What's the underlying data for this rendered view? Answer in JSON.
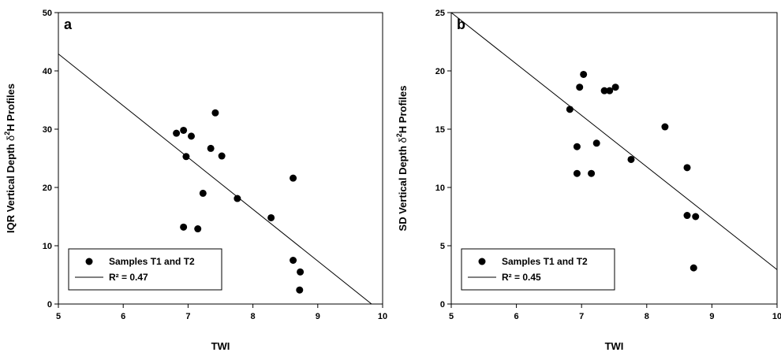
{
  "chart_data": [
    {
      "type": "scatter",
      "panel_label": "a",
      "xlabel": "TWI",
      "ylabel_parts": [
        "IQR Vertical Depth ",
        "δ",
        "2",
        "H Profiles"
      ],
      "xlim": [
        5,
        10
      ],
      "ylim": [
        0,
        50
      ],
      "xticks": [
        "5",
        "6",
        "7",
        "8",
        "9",
        "10"
      ],
      "yticks": [
        "0",
        "10",
        "20",
        "30",
        "40",
        "50"
      ],
      "legend": {
        "position": "bottom-left",
        "marker_label": "Samples T1 and T2",
        "line_label": "R² = 0.47"
      },
      "series": [
        {
          "name": "Samples T1 and T2",
          "points": [
            [
              6.82,
              29.3
            ],
            [
              6.93,
              29.8
            ],
            [
              6.97,
              25.3
            ],
            [
              7.05,
              28.8
            ],
            [
              7.42,
              32.8
            ],
            [
              7.35,
              26.7
            ],
            [
              7.52,
              25.4
            ],
            [
              7.23,
              19.0
            ],
            [
              7.76,
              18.1
            ],
            [
              8.28,
              14.8
            ],
            [
              8.62,
              21.6
            ],
            [
              6.93,
              13.2
            ],
            [
              7.15,
              12.9
            ],
            [
              8.62,
              7.5
            ],
            [
              8.73,
              5.5
            ],
            [
              8.72,
              2.4
            ]
          ]
        }
      ],
      "fit_line": {
        "x": [
          5,
          9.83
        ],
        "y": [
          42.9,
          0
        ]
      }
    },
    {
      "type": "scatter",
      "panel_label": "b",
      "xlabel": "TWI",
      "ylabel_parts": [
        "SD  Vertical Depth ",
        "δ",
        "2",
        "H Profiles"
      ],
      "xlim": [
        5,
        10
      ],
      "ylim": [
        0,
        25
      ],
      "xticks": [
        "5",
        "6",
        "7",
        "8",
        "9",
        "10"
      ],
      "yticks": [
        "0",
        "5",
        "10",
        "15",
        "20",
        "25"
      ],
      "legend": {
        "position": "bottom-left",
        "marker_label": "Samples T1 and T2",
        "line_label": "R² = 0.45"
      },
      "series": [
        {
          "name": "Samples T1 and T2",
          "points": [
            [
              7.03,
              19.7
            ],
            [
              6.97,
              18.6
            ],
            [
              7.35,
              18.3
            ],
            [
              7.43,
              18.3
            ],
            [
              7.52,
              18.6
            ],
            [
              6.82,
              16.7
            ],
            [
              8.28,
              15.2
            ],
            [
              6.93,
              13.5
            ],
            [
              7.23,
              13.8
            ],
            [
              7.76,
              12.4
            ],
            [
              6.93,
              11.2
            ],
            [
              7.15,
              11.2
            ],
            [
              8.62,
              11.7
            ],
            [
              8.62,
              7.6
            ],
            [
              8.75,
              7.5
            ],
            [
              8.72,
              3.1
            ]
          ]
        }
      ],
      "fit_line": {
        "x": [
          5,
          10
        ],
        "y": [
          25.0,
          2.95
        ]
      }
    }
  ]
}
